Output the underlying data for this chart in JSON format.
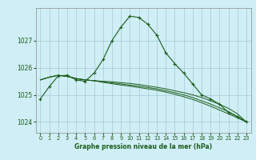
{
  "title": "Graphe pression niveau de la mer (hPa)",
  "background_color": "#d0eef5",
  "grid_color": "#9eccd8",
  "line_color": "#1a5c1a",
  "xlim": [
    -0.5,
    23.5
  ],
  "ylim": [
    1023.6,
    1028.2
  ],
  "yticks": [
    1024,
    1025,
    1026,
    1027
  ],
  "xticks": [
    0,
    1,
    2,
    3,
    4,
    5,
    6,
    7,
    8,
    9,
    10,
    11,
    12,
    13,
    14,
    15,
    16,
    17,
    18,
    19,
    20,
    21,
    22,
    23
  ],
  "series": [
    {
      "x": [
        0,
        1,
        2,
        3,
        4,
        5,
        6,
        7,
        8,
        9,
        10,
        11,
        12,
        13,
        14,
        15,
        16,
        17,
        18,
        19,
        20,
        21,
        22,
        23
      ],
      "y": [
        1024.85,
        1025.3,
        1025.7,
        1025.72,
        1025.55,
        1025.5,
        1025.8,
        1026.3,
        1027.0,
        1027.5,
        1027.9,
        1027.85,
        1027.6,
        1027.2,
        1026.55,
        1026.15,
        1025.8,
        1025.4,
        1025.0,
        1024.85,
        1024.65,
        1024.35,
        1024.2,
        1024.0
      ],
      "marker": true
    },
    {
      "x": [
        0,
        1,
        2,
        3,
        4,
        5,
        6,
        7,
        8,
        9,
        10,
        11,
        12,
        13,
        14,
        15,
        16,
        17,
        18,
        19,
        20,
        21,
        22,
        23
      ],
      "y": [
        1025.55,
        1025.65,
        1025.72,
        1025.68,
        1025.6,
        1025.55,
        1025.52,
        1025.5,
        1025.48,
        1025.45,
        1025.42,
        1025.38,
        1025.33,
        1025.28,
        1025.22,
        1025.15,
        1025.08,
        1025.0,
        1024.9,
        1024.78,
        1024.65,
        1024.5,
        1024.3,
        1024.0
      ],
      "marker": false
    },
    {
      "x": [
        0,
        1,
        2,
        3,
        4,
        5,
        6,
        7,
        8,
        9,
        10,
        11,
        12,
        13,
        14,
        15,
        16,
        17,
        18,
        19,
        20,
        21,
        22,
        23
      ],
      "y": [
        1025.55,
        1025.65,
        1025.72,
        1025.68,
        1025.6,
        1025.55,
        1025.52,
        1025.48,
        1025.44,
        1025.4,
        1025.36,
        1025.32,
        1025.27,
        1025.22,
        1025.15,
        1025.08,
        1025.0,
        1024.9,
        1024.78,
        1024.66,
        1024.52,
        1024.38,
        1024.2,
        1024.0
      ],
      "marker": false
    },
    {
      "x": [
        0,
        1,
        2,
        3,
        4,
        5,
        6,
        7,
        8,
        9,
        10,
        11,
        12,
        13,
        14,
        15,
        16,
        17,
        18,
        19,
        20,
        21,
        22,
        23
      ],
      "y": [
        1025.55,
        1025.65,
        1025.72,
        1025.68,
        1025.6,
        1025.55,
        1025.52,
        1025.46,
        1025.41,
        1025.36,
        1025.32,
        1025.27,
        1025.22,
        1025.17,
        1025.1,
        1025.02,
        1024.93,
        1024.83,
        1024.71,
        1024.58,
        1024.44,
        1024.3,
        1024.15,
        1024.0
      ],
      "marker": false
    }
  ]
}
